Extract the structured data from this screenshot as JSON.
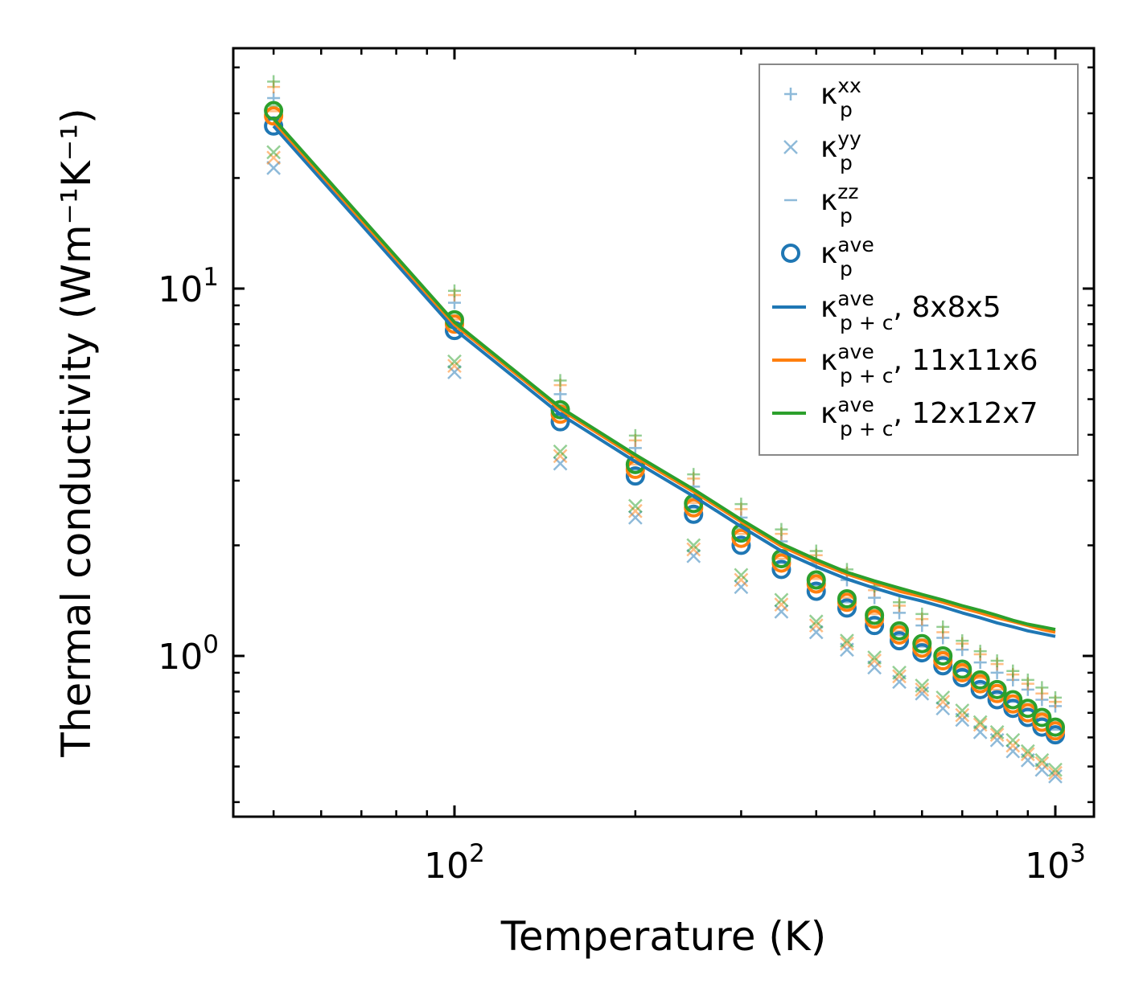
{
  "chart_data": {
    "type": "scatter",
    "xlabel": "Temperature (K)",
    "ylabel": "Thermal conductivity (Wm⁻¹K⁻¹)",
    "xscale": "log",
    "yscale": "log",
    "xlim": [
      42.8,
      1159
    ],
    "ylim": [
      0.365,
      45.1
    ],
    "xticks": [
      {
        "base": "10",
        "exp": "2",
        "value": 100
      },
      {
        "base": "10",
        "exp": "3",
        "value": 1000
      }
    ],
    "yticks": [
      {
        "base": "10",
        "exp": "0",
        "value": 1
      },
      {
        "base": "10",
        "exp": "1",
        "value": 10
      }
    ],
    "grid": false,
    "legend_position": "top-right",
    "colors": {
      "8x8x5": "#1f77b4",
      "11x11x6": "#ff7f0e",
      "12x12x7": "#2ca02c"
    },
    "x": [
      50,
      100,
      150,
      200,
      250,
      300,
      350,
      400,
      450,
      500,
      550,
      600,
      650,
      700,
      750,
      800,
      850,
      900,
      950,
      1000
    ],
    "meshes": [
      {
        "name": "8x8x5",
        "color": "#1f77b4",
        "ave": [
          27.7,
          7.69,
          4.34,
          3.09,
          2.43,
          2.0,
          1.72,
          1.5,
          1.35,
          1.21,
          1.1,
          1.02,
          0.94,
          0.873,
          0.81,
          0.76,
          0.72,
          0.68,
          0.64,
          0.61
        ],
        "xx": [
          33.0,
          9.15,
          5.16,
          3.68,
          2.89,
          2.38,
          2.05,
          1.79,
          1.61,
          1.44,
          1.31,
          1.21,
          1.12,
          1.04,
          0.96,
          0.9,
          0.86,
          0.81,
          0.76,
          0.73
        ],
        "yy": [
          21.3,
          5.92,
          3.34,
          2.38,
          1.87,
          1.54,
          1.32,
          1.16,
          1.04,
          0.93,
          0.85,
          0.79,
          0.72,
          0.67,
          0.62,
          0.59,
          0.55,
          0.52,
          0.49,
          0.47
        ],
        "zz": [
          28.8,
          8.0,
          4.51,
          3.21,
          2.53,
          2.08,
          1.79,
          1.56,
          1.4,
          1.26,
          1.14,
          1.06,
          0.98,
          0.91,
          0.84,
          0.79,
          0.75,
          0.71,
          0.67,
          0.63
        ],
        "ave_pc": [
          27.7,
          7.75,
          4.55,
          3.38,
          2.72,
          2.25,
          1.93,
          1.75,
          1.62,
          1.53,
          1.46,
          1.41,
          1.36,
          1.31,
          1.27,
          1.23,
          1.2,
          1.17,
          1.15,
          1.13
        ]
      },
      {
        "name": "11x11x6",
        "color": "#ff7f0e",
        "ave": [
          29.5,
          8.0,
          4.55,
          3.22,
          2.53,
          2.09,
          1.79,
          1.57,
          1.4,
          1.26,
          1.14,
          1.05,
          0.97,
          0.9,
          0.84,
          0.79,
          0.74,
          0.7,
          0.66,
          0.625
        ],
        "xx": [
          35.4,
          9.6,
          5.46,
          3.86,
          3.04,
          2.51,
          2.15,
          1.88,
          1.68,
          1.51,
          1.37,
          1.26,
          1.16,
          1.08,
          1.01,
          0.95,
          0.89,
          0.84,
          0.79,
          0.75
        ],
        "yy": [
          22.7,
          6.16,
          3.5,
          2.48,
          1.95,
          1.61,
          1.38,
          1.21,
          1.08,
          0.97,
          0.88,
          0.81,
          0.75,
          0.69,
          0.65,
          0.61,
          0.57,
          0.54,
          0.51,
          0.48
        ],
        "zz": [
          30.4,
          8.24,
          4.69,
          3.32,
          2.61,
          2.15,
          1.84,
          1.62,
          1.44,
          1.3,
          1.17,
          1.08,
          1.0,
          0.93,
          0.87,
          0.81,
          0.76,
          0.72,
          0.68,
          0.64
        ],
        "ave_pc": [
          28.5,
          7.98,
          4.69,
          3.48,
          2.8,
          2.32,
          1.99,
          1.8,
          1.67,
          1.58,
          1.5,
          1.45,
          1.4,
          1.35,
          1.31,
          1.27,
          1.24,
          1.21,
          1.18,
          1.16
        ]
      },
      {
        "name": "12x12x7",
        "color": "#2ca02c",
        "ave": [
          30.5,
          8.22,
          4.68,
          3.32,
          2.6,
          2.16,
          1.84,
          1.61,
          1.43,
          1.29,
          1.17,
          1.08,
          1.0,
          0.92,
          0.86,
          0.81,
          0.76,
          0.72,
          0.68,
          0.64
        ],
        "xx": [
          36.6,
          9.86,
          5.62,
          3.98,
          3.12,
          2.59,
          2.21,
          1.93,
          1.72,
          1.55,
          1.4,
          1.3,
          1.2,
          1.1,
          1.03,
          0.97,
          0.91,
          0.86,
          0.82,
          0.77
        ],
        "yy": [
          23.5,
          6.33,
          3.6,
          2.56,
          2.0,
          1.66,
          1.42,
          1.24,
          1.1,
          0.99,
          0.9,
          0.83,
          0.77,
          0.71,
          0.66,
          0.62,
          0.59,
          0.55,
          0.52,
          0.49
        ],
        "zz": [
          31.4,
          8.47,
          4.82,
          3.42,
          2.68,
          2.22,
          1.9,
          1.66,
          1.47,
          1.33,
          1.21,
          1.11,
          1.03,
          0.95,
          0.89,
          0.83,
          0.78,
          0.74,
          0.7,
          0.66
        ],
        "ave_pc": [
          29.0,
          8.1,
          4.75,
          3.53,
          2.84,
          2.35,
          2.02,
          1.83,
          1.69,
          1.6,
          1.53,
          1.47,
          1.42,
          1.37,
          1.33,
          1.29,
          1.25,
          1.22,
          1.2,
          1.18
        ]
      }
    ],
    "legend": [
      {
        "marker": "plus",
        "symbol": "κ",
        "sub": "p",
        "sup": "xx",
        "suffix": ""
      },
      {
        "marker": "x",
        "symbol": "κ",
        "sub": "p",
        "sup": "yy",
        "suffix": ""
      },
      {
        "marker": "hline",
        "symbol": "κ",
        "sub": "p",
        "sup": "zz",
        "suffix": ""
      },
      {
        "marker": "circle",
        "symbol": "κ",
        "sub": "p",
        "sup": "ave",
        "suffix": ""
      },
      {
        "marker": "line",
        "color": "#1f77b4",
        "symbol": "κ",
        "sub": "p + c",
        "sup": "ave",
        "suffix": ", 8x8x5"
      },
      {
        "marker": "line",
        "color": "#ff7f0e",
        "symbol": "κ",
        "sub": "p + c",
        "sup": "ave",
        "suffix": ", 11x11x6"
      },
      {
        "marker": "line",
        "color": "#2ca02c",
        "symbol": "κ",
        "sub": "p + c",
        "sup": "ave",
        "suffix": ", 12x12x7"
      }
    ]
  }
}
